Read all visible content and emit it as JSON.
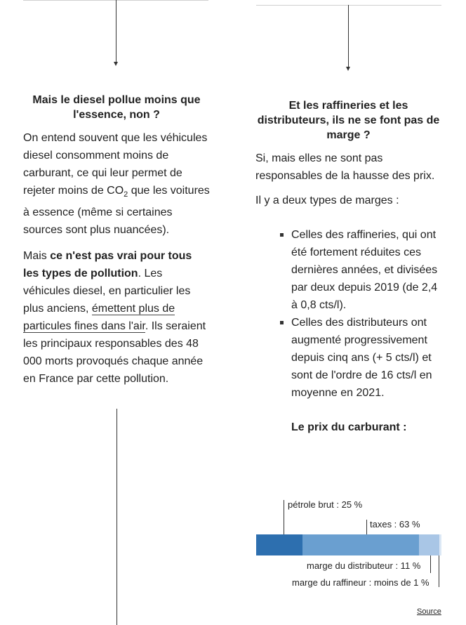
{
  "left": {
    "title": "Mais le diesel pollue moins que l'essence, non ?",
    "p1": {
      "before": "On entend souvent que les véhicules diesel consomment moins de carburant, ce qui leur permet de rejeter moins de CO",
      "sub": "2",
      "after": " que les voitures à essence (même si certaines sources sont plus nuancées)."
    },
    "p2": {
      "intro": "Mais ",
      "bold": "ce n'est pas vrai pour tous les types de pollution",
      "mid": ". Les véhicules diesel, en particulier les plus anciens, ",
      "link": "émettent plus de particules fines dans l'air",
      "end": ". Ils seraient les principaux responsables des 48 000 morts provoqués chaque année en France par cette pollution."
    }
  },
  "right": {
    "title": "Et les raffineries et les distributeurs, ils ne se font pas de marge ?",
    "p1": "Si, mais elles ne sont pas responsables de la hausse des prix.",
    "p2": "Il y a deux types de marges :",
    "bullets": [
      "Celles des raffineries, qui ont été fortement réduites ces dernières années, et divisées par deux depuis 2019 (de 2,4 à 0,8 cts/l).",
      "Celles des distributeurs ont augmenté progressivement depuis cinq ans (+ 5 cts/l) et sont de l'ordre de 16 cts/l en moyenne en 2021."
    ],
    "chart_title": "Le prix du carburant :"
  },
  "chart_data": {
    "type": "bar",
    "orientation": "horizontal-stacked",
    "title": "Le prix du carburant :",
    "segments": [
      {
        "name": "pétrole brut",
        "value": 25,
        "label": "pétrole brut : 25 %",
        "color": "#2d6faf"
      },
      {
        "name": "taxes",
        "value": 63,
        "label": "taxes : 63 %",
        "color": "#6a9fd0"
      },
      {
        "name": "marge du distributeur",
        "value": 11,
        "label": "marge du distributeur : 11 %",
        "color": "#a9c6e6"
      },
      {
        "name": "marge du raffineur",
        "value": 1,
        "label": "marge du raffineur : moins de 1 %",
        "color": "#dce8f5"
      }
    ],
    "unit": "%"
  },
  "source_label": "Source"
}
